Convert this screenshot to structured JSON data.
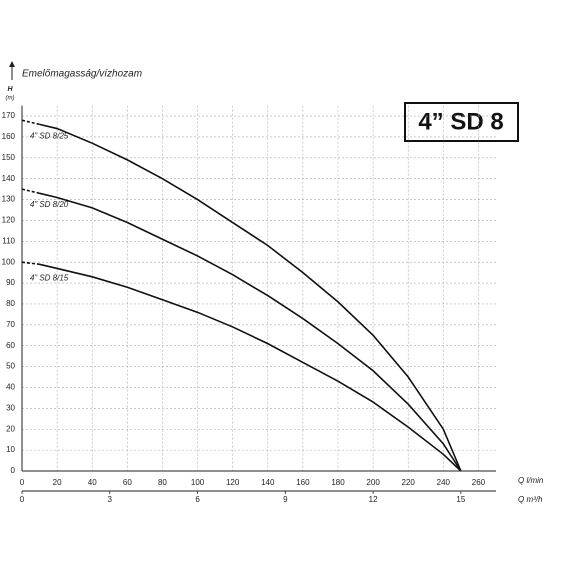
{
  "chart_data": {
    "type": "line",
    "title": "4” SD 8",
    "y_axis_title": "Emelőmagasság/vízhozam",
    "y_label": "H",
    "y_unit": "(m)",
    "x_label": "Q l/min",
    "x2_label": "Q m³/h",
    "x": [
      0,
      10,
      20,
      40,
      60,
      80,
      100,
      120,
      140,
      160,
      180,
      200,
      220,
      240,
      250
    ],
    "series": [
      {
        "name": "4” SD 8/25",
        "color": "#111111",
        "values": [
          168,
          166,
          164,
          157,
          149,
          140,
          130,
          119,
          108,
          95,
          81,
          65,
          45,
          20,
          0
        ]
      },
      {
        "name": "4” SD 8/20",
        "color": "#111111",
        "values": [
          135,
          133,
          131,
          126,
          119,
          111,
          103,
          94,
          84,
          73,
          61,
          48,
          32,
          13,
          0
        ]
      },
      {
        "name": "4” SD 8/15",
        "color": "#111111",
        "values": [
          100,
          99,
          97,
          93,
          88,
          82,
          76,
          69,
          61,
          52,
          43,
          33,
          21,
          8,
          0
        ]
      }
    ],
    "xlim": [
      0,
      270
    ],
    "xticks": [
      0,
      20,
      40,
      60,
      80,
      100,
      120,
      140,
      160,
      180,
      200,
      220,
      240,
      260
    ],
    "x2lim": [
      0,
      16.2
    ],
    "x2ticks": [
      0,
      3,
      6,
      9,
      12,
      15
    ],
    "ylim": [
      0,
      175
    ],
    "yticks": [
      0,
      10,
      20,
      30,
      40,
      50,
      60,
      70,
      80,
      90,
      100,
      110,
      120,
      130,
      140,
      150,
      160,
      170
    ],
    "grid": true
  }
}
